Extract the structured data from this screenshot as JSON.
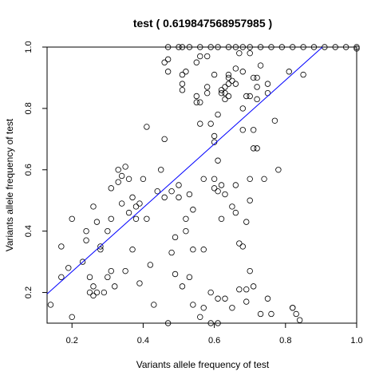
{
  "chart_data": {
    "type": "scatter",
    "title": "test ( 0.619847568957985 )",
    "xlabel": "Variants allele frequency of test",
    "ylabel": "Variants allele frequency of test",
    "xlim": [
      0.13,
      1.0
    ],
    "ylim": [
      0.1,
      1.0
    ],
    "x_ticks": [
      0.2,
      0.4,
      0.6,
      0.8,
      1.0
    ],
    "y_ticks": [
      0.2,
      0.4,
      0.6,
      0.8,
      1.0
    ],
    "x_tick_labels": [
      "0.2",
      "0.4",
      "0.6",
      "0.8",
      "1.0"
    ],
    "y_tick_labels": [
      "0.2",
      "0.4",
      "0.6",
      "0.8",
      "1.0"
    ],
    "grid": false,
    "point_color": "#000000",
    "fit_line": {
      "intercept": 0.06,
      "slope": 1.04,
      "color": "#0000ff"
    },
    "points": [
      [
        0.14,
        0.16
      ],
      [
        0.17,
        0.35
      ],
      [
        0.17,
        0.25
      ],
      [
        0.19,
        0.28
      ],
      [
        0.2,
        0.12
      ],
      [
        0.2,
        0.44
      ],
      [
        0.23,
        0.3
      ],
      [
        0.24,
        0.37
      ],
      [
        0.24,
        0.4
      ],
      [
        0.25,
        0.25
      ],
      [
        0.25,
        0.2
      ],
      [
        0.26,
        0.22
      ],
      [
        0.26,
        0.48
      ],
      [
        0.26,
        0.19
      ],
      [
        0.27,
        0.43
      ],
      [
        0.27,
        0.2
      ],
      [
        0.28,
        0.35
      ],
      [
        0.28,
        0.34
      ],
      [
        0.29,
        0.2
      ],
      [
        0.3,
        0.25
      ],
      [
        0.3,
        0.4
      ],
      [
        0.31,
        0.27
      ],
      [
        0.31,
        0.44
      ],
      [
        0.31,
        0.54
      ],
      [
        0.32,
        0.22
      ],
      [
        0.33,
        0.6
      ],
      [
        0.33,
        0.56
      ],
      [
        0.34,
        0.58
      ],
      [
        0.34,
        0.49
      ],
      [
        0.35,
        0.61
      ],
      [
        0.35,
        0.27
      ],
      [
        0.36,
        0.46
      ],
      [
        0.36,
        0.57
      ],
      [
        0.37,
        0.51
      ],
      [
        0.37,
        0.34
      ],
      [
        0.38,
        0.44
      ],
      [
        0.38,
        0.48
      ],
      [
        0.39,
        0.49
      ],
      [
        0.39,
        0.23
      ],
      [
        0.4,
        0.57
      ],
      [
        0.41,
        0.74
      ],
      [
        0.41,
        0.44
      ],
      [
        0.42,
        0.29
      ],
      [
        0.43,
        0.16
      ],
      [
        0.44,
        0.53
      ],
      [
        0.45,
        0.6
      ],
      [
        0.46,
        0.51
      ],
      [
        0.46,
        0.7
      ],
      [
        0.46,
        0.95
      ],
      [
        0.47,
        0.96
      ],
      [
        0.47,
        0.1
      ],
      [
        0.47,
        0.92
      ],
      [
        0.47,
        1.0
      ],
      [
        0.48,
        0.53
      ],
      [
        0.48,
        0.33
      ],
      [
        0.49,
        0.38
      ],
      [
        0.49,
        0.26
      ],
      [
        0.5,
        0.55
      ],
      [
        0.5,
        0.51
      ],
      [
        0.51,
        0.91
      ],
      [
        0.51,
        1.0
      ],
      [
        0.51,
        0.88
      ],
      [
        0.51,
        0.86
      ],
      [
        0.51,
        0.22
      ],
      [
        0.52,
        0.44
      ],
      [
        0.52,
        0.92
      ],
      [
        0.52,
        0.4
      ],
      [
        0.53,
        0.52
      ],
      [
        0.53,
        0.25
      ],
      [
        0.54,
        0.47
      ],
      [
        0.54,
        0.16
      ],
      [
        0.54,
        0.34
      ],
      [
        0.55,
        0.82
      ],
      [
        0.55,
        0.95
      ],
      [
        0.55,
        0.84
      ],
      [
        0.56,
        0.75
      ],
      [
        0.56,
        0.82
      ],
      [
        0.56,
        0.97
      ],
      [
        0.56,
        0.12
      ],
      [
        0.57,
        0.15
      ],
      [
        0.57,
        0.34
      ],
      [
        0.57,
        0.57
      ],
      [
        0.58,
        0.85
      ],
      [
        0.58,
        0.87
      ],
      [
        0.58,
        0.97
      ],
      [
        0.59,
        0.75
      ],
      [
        0.59,
        0.2
      ],
      [
        0.59,
        0.1
      ],
      [
        0.6,
        0.69
      ],
      [
        0.6,
        0.71
      ],
      [
        0.6,
        0.91
      ],
      [
        0.6,
        0.54
      ],
      [
        0.6,
        0.57
      ],
      [
        0.61,
        0.78
      ],
      [
        0.61,
        0.63
      ],
      [
        0.61,
        0.53
      ],
      [
        0.61,
        0.18
      ],
      [
        0.61,
        0.1
      ],
      [
        0.62,
        0.86
      ],
      [
        0.62,
        0.85
      ],
      [
        0.62,
        0.55
      ],
      [
        0.62,
        0.44
      ],
      [
        0.63,
        0.83
      ],
      [
        0.63,
        0.87
      ],
      [
        0.63,
        0.85
      ],
      [
        0.63,
        0.52
      ],
      [
        0.63,
        0.18
      ],
      [
        0.64,
        0.88
      ],
      [
        0.64,
        0.9
      ],
      [
        0.64,
        0.91
      ],
      [
        0.64,
        0.84
      ],
      [
        0.65,
        0.89
      ],
      [
        0.65,
        0.48
      ],
      [
        0.65,
        0.15
      ],
      [
        0.66,
        0.88
      ],
      [
        0.66,
        0.93
      ],
      [
        0.66,
        0.46
      ],
      [
        0.66,
        0.55
      ],
      [
        0.67,
        0.98
      ],
      [
        0.67,
        0.21
      ],
      [
        0.67,
        0.36
      ],
      [
        0.68,
        0.35
      ],
      [
        0.68,
        0.8
      ],
      [
        0.68,
        0.73
      ],
      [
        0.68,
        0.92
      ],
      [
        0.69,
        0.84
      ],
      [
        0.69,
        0.43
      ],
      [
        0.69,
        0.17
      ],
      [
        0.69,
        0.21
      ],
      [
        0.7,
        0.98
      ],
      [
        0.7,
        0.84
      ],
      [
        0.7,
        0.5
      ],
      [
        0.7,
        0.27
      ],
      [
        0.7,
        0.57
      ],
      [
        0.71,
        0.9
      ],
      [
        0.71,
        0.67
      ],
      [
        0.71,
        0.22
      ],
      [
        0.71,
        0.73
      ],
      [
        0.72,
        0.9
      ],
      [
        0.72,
        0.83
      ],
      [
        0.72,
        0.87
      ],
      [
        0.72,
        0.67
      ],
      [
        0.73,
        0.94
      ],
      [
        0.73,
        0.13
      ],
      [
        0.74,
        0.57
      ],
      [
        0.75,
        0.88
      ],
      [
        0.75,
        0.85
      ],
      [
        0.75,
        0.18
      ],
      [
        0.76,
        0.13
      ],
      [
        0.77,
        0.76
      ],
      [
        0.78,
        0.6
      ],
      [
        0.81,
        0.92
      ],
      [
        0.82,
        0.15
      ],
      [
        0.82,
        0.15
      ],
      [
        0.83,
        0.13
      ],
      [
        0.84,
        0.11
      ],
      [
        0.85,
        0.91
      ],
      [
        0.5,
        1.0
      ],
      [
        0.53,
        1.0
      ],
      [
        0.56,
        1.0
      ],
      [
        0.59,
        1.0
      ],
      [
        0.61,
        1.0
      ],
      [
        0.64,
        1.0
      ],
      [
        0.66,
        1.0
      ],
      [
        0.68,
        1.0
      ],
      [
        0.7,
        1.0
      ],
      [
        0.73,
        1.0
      ],
      [
        0.76,
        1.0
      ],
      [
        0.79,
        1.0
      ],
      [
        0.82,
        1.0
      ],
      [
        0.85,
        1.0
      ],
      [
        0.88,
        1.0
      ],
      [
        0.91,
        1.0
      ],
      [
        0.94,
        1.0
      ],
      [
        0.97,
        1.0
      ],
      [
        1.0,
        1.0
      ],
      [
        1.0,
        0.995
      ]
    ]
  }
}
